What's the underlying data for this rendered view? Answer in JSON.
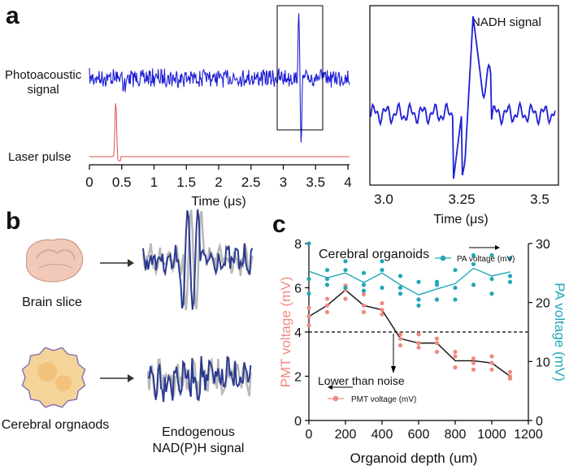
{
  "panels": {
    "a": "a",
    "b": "b",
    "c": "c"
  },
  "panel_a": {
    "photoacoustic_label": "Photoacoustic\nsignal",
    "laser_label": "Laser pulse",
    "main_xticks": [
      "0",
      "0.5",
      "1",
      "1.5",
      "2",
      "2.5",
      "3",
      "3.5",
      "4"
    ],
    "main_xlabel": "Time (μs)",
    "inset_title": "NADH signal",
    "inset_xticks": [
      "3.0",
      "3.25",
      "3.5"
    ],
    "inset_xlabel": "Time (μs)",
    "colors": {
      "pa": "#1f1fd6",
      "laser": "#e0504a"
    }
  },
  "panel_b": {
    "brain_slice_label": "Brain slice",
    "organoid_label": "Cerebral orgnaods",
    "signal_label": "Endogenous\nNAD(P)H signal",
    "colors": {
      "trace": "#2b3a8f",
      "gray": "#b8b8b8",
      "brain": "#f2c9b8",
      "organoid": "#f5d49a"
    }
  },
  "panel_c": {
    "chart_data": {
      "type": "scatter",
      "title": "Cerebral organoids",
      "xlabel": "Organoid depth (um)",
      "ylabel_left": "PMT voltage (mV)",
      "ylabel_right": "PA voltage (mV)",
      "xlim": [
        0,
        1200
      ],
      "ylim_left": [
        0,
        8
      ],
      "ylim_right": [
        0,
        30
      ],
      "xticks": [
        "0",
        "200",
        "400",
        "600",
        "800",
        "1000",
        "1200"
      ],
      "yticks_left": [
        "0",
        "2",
        "4",
        "6",
        "8"
      ],
      "yticks_right": [
        "0",
        "10",
        "20",
        "30"
      ],
      "noise_level": 4,
      "noise_label": "Lower than noise",
      "legend_pa": "PA voltage (mV)",
      "legend_pmt": "PMT voltage (mV)",
      "colors": {
        "pmt": "#f08a80",
        "pa": "#22a7b8",
        "line": "#111111"
      },
      "series": [
        {
          "name": "PMT voltage (mV)",
          "x": [
            0,
            0,
            0,
            100,
            100,
            100,
            200,
            200,
            200,
            300,
            300,
            300,
            400,
            400,
            400,
            500,
            500,
            500,
            600,
            600,
            600,
            700,
            700,
            700,
            800,
            800,
            800,
            900,
            900,
            900,
            1000,
            1000,
            1000,
            1100,
            1100,
            1100
          ],
          "y": [
            4.3,
            4.7,
            5.1,
            4.9,
            5.2,
            5.5,
            5.5,
            5.9,
            6.1,
            4.9,
            5.2,
            5.7,
            4.8,
            5.0,
            5.3,
            3.4,
            3.7,
            3.9,
            3.3,
            3.5,
            3.9,
            3.1,
            3.5,
            3.7,
            2.4,
            2.9,
            3.1,
            2.3,
            2.6,
            2.8,
            2.3,
            2.6,
            2.9,
            1.9,
            2.0,
            2.2
          ]
        },
        {
          "name": "PA voltage (mV)",
          "x": [
            0,
            0,
            0,
            100,
            100,
            100,
            200,
            200,
            200,
            300,
            300,
            300,
            400,
            400,
            400,
            500,
            500,
            500,
            600,
            600,
            600,
            700,
            700,
            700,
            800,
            800,
            800,
            900,
            900,
            900,
            1000,
            1000,
            1000,
            1100,
            1100,
            1100
          ],
          "y": [
            21.5,
            24.0,
            30.0,
            23.0,
            24.0,
            25.5,
            22.5,
            25.5,
            27.0,
            22.0,
            23.0,
            25.0,
            22.5,
            25.5,
            27.0,
            21.5,
            22.5,
            24.5,
            19.5,
            20.5,
            23.5,
            20.5,
            23.0,
            23.5,
            20.5,
            22.5,
            25.5,
            23.0,
            26.5,
            28.0,
            21.5,
            24.0,
            28.0,
            23.5,
            24.5,
            27.5
          ]
        }
      ],
      "lines": [
        {
          "name": "PMT mean",
          "x": [
            0,
            100,
            200,
            300,
            400,
            500,
            600,
            700,
            800,
            900,
            1000,
            1100
          ],
          "y": [
            4.7,
            5.2,
            5.9,
            5.2,
            5.0,
            3.7,
            3.5,
            3.5,
            2.7,
            2.7,
            2.6,
            2.0
          ]
        },
        {
          "name": "PA mean",
          "x": [
            0,
            100,
            200,
            300,
            400,
            500,
            600,
            700,
            800,
            900,
            1000,
            1100
          ],
          "y": [
            25.3,
            24.2,
            25.0,
            23.4,
            25.0,
            23.0,
            21.3,
            22.3,
            23.2,
            25.8,
            24.5,
            25.2
          ]
        }
      ]
    }
  }
}
